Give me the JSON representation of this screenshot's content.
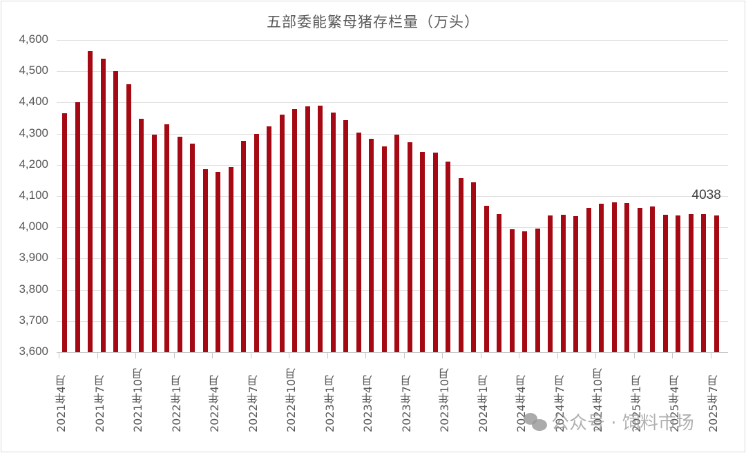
{
  "chart_data": {
    "type": "bar",
    "title": "五部委能繁母猪存栏量（万头）",
    "xlabel": "",
    "ylabel": "",
    "ylim": [
      3600,
      4600
    ],
    "yticks": [
      3600,
      3700,
      3800,
      3900,
      4000,
      4100,
      4200,
      4300,
      4400,
      4500,
      4600
    ],
    "ytick_labels": [
      "3,600",
      "3,700",
      "3,800",
      "3,900",
      "4,000",
      "4,100",
      "4,200",
      "4,300",
      "4,400",
      "4,500",
      "4,600"
    ],
    "grid": true,
    "legend": null,
    "bar_color": "#a50a14",
    "categories": [
      "2021年4月",
      "2021年5月",
      "2021年6月",
      "2021年7月",
      "2021年8月",
      "2021年9月",
      "2021年10月",
      "2021年11月",
      "2021年12月",
      "2022年1月",
      "2022年2月",
      "2022年3月",
      "2022年4月",
      "2022年5月",
      "2022年6月",
      "2022年7月",
      "2022年8月",
      "2022年9月",
      "2022年10月",
      "2022年11月",
      "2022年12月",
      "2023年1月",
      "2023年2月",
      "2023年3月",
      "2023年4月",
      "2023年5月",
      "2023年6月",
      "2023年7月",
      "2023年8月",
      "2023年9月",
      "2023年10月",
      "2023年11月",
      "2023年12月",
      "2024年1月",
      "2024年2月",
      "2024年3月",
      "2024年4月",
      "2024年5月",
      "2024年6月",
      "2024年7月",
      "2024年8月",
      "2024年9月",
      "2024年10月",
      "2024年11月",
      "2024年12月",
      "2025年1月",
      "2025年2月",
      "2025年3月",
      "2025年4月",
      "2025年5月",
      "2025年6月",
      "2025年7月"
    ],
    "x_tick_labels": [
      "2021年4月",
      "2021年7月",
      "2021年10月",
      "2022年1月",
      "2022年4月",
      "2022年7月",
      "2022年10月",
      "2023年1月",
      "2023年4月",
      "2023年7月",
      "2023年10月",
      "2024年1月",
      "2024年4月",
      "2024年7月",
      "2024年10月",
      "2025年1月",
      "2025年4月",
      "2025年7月"
    ],
    "values": [
      4366,
      4400,
      4564,
      4541,
      4500,
      4458,
      4348,
      4297,
      4330,
      4290,
      4268,
      4186,
      4177,
      4192,
      4276,
      4299,
      4323,
      4361,
      4378,
      4387,
      4390,
      4367,
      4343,
      4303,
      4283,
      4259,
      4297,
      4272,
      4241,
      4239,
      4210,
      4158,
      4144,
      4069,
      4043,
      3993,
      3987,
      3996,
      4038,
      4040,
      4036,
      4062,
      4076,
      4081,
      4078,
      4062,
      4067,
      4040,
      4038,
      4042,
      4043,
      4038
    ],
    "annotations": [
      {
        "index": 51,
        "text": "4038"
      }
    ]
  },
  "watermark": {
    "icon": "wechat-icon",
    "text": "公众号 · 饲料市场"
  }
}
